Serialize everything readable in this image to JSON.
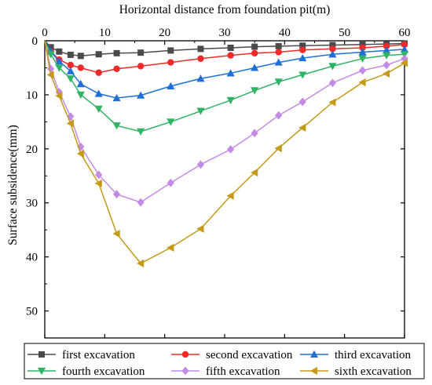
{
  "chart_data": {
    "type": "line",
    "title": "",
    "xlabel": "Horizontal distance from foundation pit(m)",
    "ylabel": "Surface subsidence(mm)",
    "x_axis_position": "top",
    "y_inverted": true,
    "xlim": [
      0,
      60
    ],
    "ylim": [
      0,
      55
    ],
    "xticks": [
      "0",
      "10",
      "20",
      "30",
      "40",
      "50",
      "60"
    ],
    "yticks": [
      "0",
      "10",
      "20",
      "30",
      "40",
      "50"
    ],
    "grid": false,
    "legend_position": "bottom",
    "series": [
      {
        "name": "first excavation",
        "color": "#4a4a4a",
        "marker": "square",
        "x": [
          0,
          1,
          2.4,
          4.3,
          6,
          9,
          12,
          16,
          21,
          26,
          31,
          35,
          39,
          43,
          48,
          53,
          57,
          60
        ],
        "y": [
          0,
          1.2,
          2.0,
          2.6,
          2.8,
          2.5,
          2.3,
          2.2,
          1.8,
          1.5,
          1.3,
          1.1,
          1.0,
          0.9,
          0.8,
          0.7,
          0.6,
          0.5
        ]
      },
      {
        "name": "second excavation",
        "color": "#ee2a2a",
        "marker": "circle",
        "x": [
          0,
          1,
          2.4,
          4.3,
          6,
          9,
          12,
          16,
          21,
          26,
          31,
          35,
          39,
          43,
          48,
          53,
          57,
          60
        ],
        "y": [
          0,
          2.0,
          3.5,
          4.5,
          5.0,
          5.9,
          5.2,
          4.7,
          4.0,
          3.3,
          2.7,
          2.3,
          2.1,
          1.7,
          1.5,
          1.3,
          1.0,
          0.7
        ]
      },
      {
        "name": "third excavation",
        "color": "#1f6fd6",
        "marker": "triangle-up",
        "x": [
          0,
          1,
          2.4,
          4.3,
          6,
          9,
          12,
          16,
          21,
          26,
          31,
          35,
          39,
          43,
          48,
          53,
          57,
          60
        ],
        "y": [
          0,
          2.0,
          3.8,
          5.6,
          8.0,
          9.8,
          10.6,
          10.1,
          8.4,
          7.0,
          6.0,
          5.0,
          4.0,
          3.2,
          2.5,
          2.1,
          1.8,
          1.6
        ]
      },
      {
        "name": "fourth excavation",
        "color": "#2fb463",
        "marker": "triangle-down",
        "x": [
          0,
          1,
          2.4,
          4.3,
          6,
          9,
          12,
          16,
          21,
          26,
          31,
          35,
          39,
          43,
          48,
          53,
          57,
          60
        ],
        "y": [
          0,
          2.5,
          5.0,
          7.0,
          10.0,
          12.6,
          15.7,
          16.8,
          15.0,
          13.0,
          11.0,
          9.2,
          7.6,
          6.3,
          4.7,
          3.3,
          2.7,
          2.5
        ]
      },
      {
        "name": "fifth excavation",
        "color": "#c48be6",
        "marker": "diamond",
        "x": [
          0,
          1,
          2.4,
          4.3,
          6,
          9,
          12,
          16,
          21,
          26,
          31,
          35,
          39,
          43,
          48,
          53,
          57,
          60
        ],
        "y": [
          0,
          5.2,
          9.5,
          14.0,
          19.6,
          24.8,
          28.4,
          29.9,
          26.3,
          22.9,
          20.1,
          17.1,
          13.8,
          11.3,
          7.8,
          5.5,
          4.5,
          3.3
        ]
      },
      {
        "name": "sixth excavation",
        "color": "#c49a17",
        "marker": "triangle-left",
        "x": [
          0,
          1,
          2.4,
          4.3,
          6,
          9,
          12,
          16,
          21,
          26,
          31,
          35,
          39,
          43,
          48,
          53,
          57,
          60
        ],
        "y": [
          0,
          6.3,
          10.2,
          15.3,
          20.9,
          26.4,
          35.7,
          41.2,
          38.3,
          34.8,
          28.7,
          24.4,
          19.9,
          16.1,
          11.4,
          7.7,
          6.1,
          4.1
        ]
      }
    ]
  }
}
